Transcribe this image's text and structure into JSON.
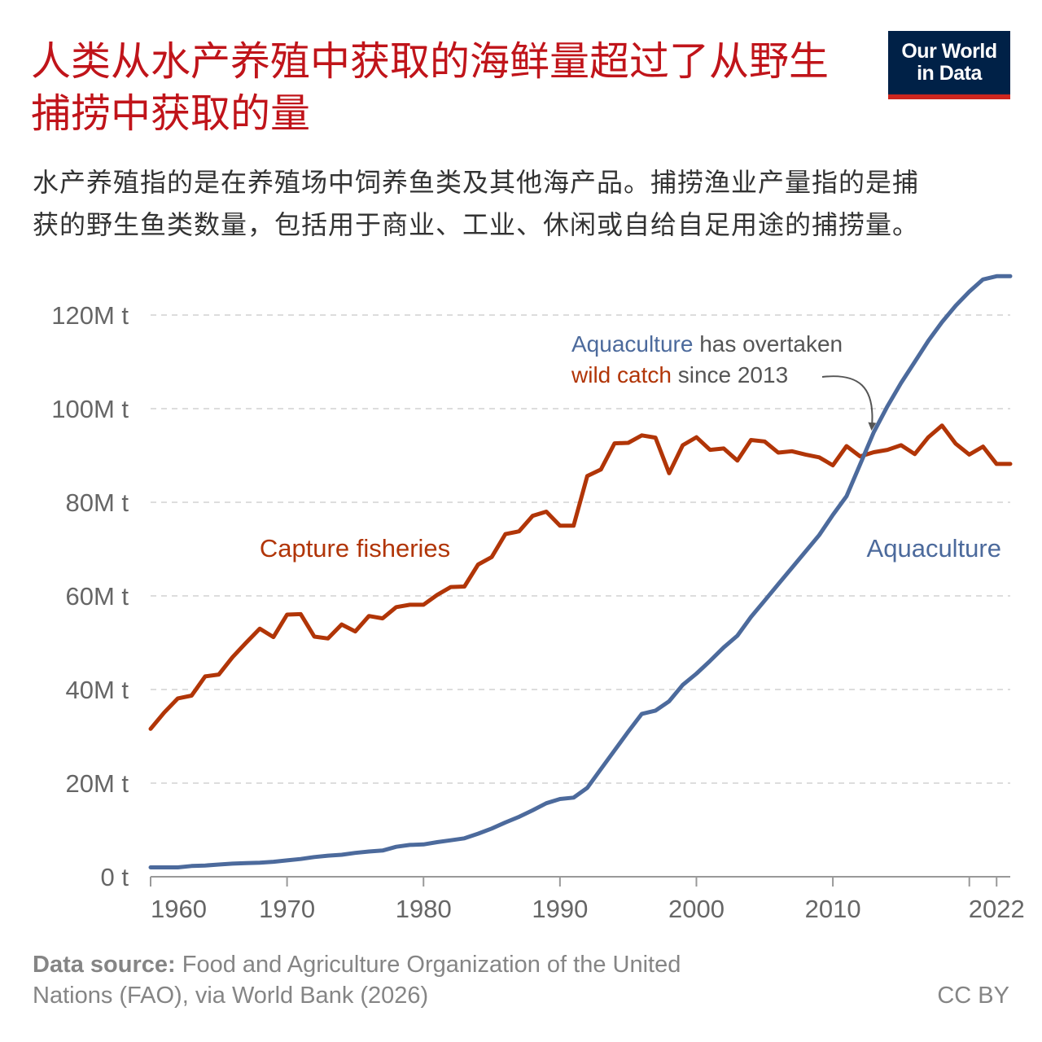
{
  "header": {
    "title": "人类从水产养殖中获取的海鲜量超过了从野生捕捞中获取的量",
    "subtitle": "水产养殖指的是在养殖场中饲养鱼类及其他海产品。捕捞渔业产量指的是捕获的野生鱼类数量，包括用于商业、工业、休闲或自给自足用途的捕捞量。"
  },
  "logo": {
    "line1": "Our World",
    "line2": "in Data",
    "bg": "#002147",
    "accent": "#ce261e"
  },
  "footer": {
    "source_label": "Data source:",
    "source_text": "Food and Agriculture Organization of the United Nations (FAO), via World Bank (2026)",
    "license": "CC BY"
  },
  "annotation": {
    "part1": "Aquaculture",
    "part2": " has overtaken",
    "part3": "wild catch",
    "part4": " since 2013"
  },
  "chart_data": {
    "type": "line",
    "title": "",
    "xlabel": "",
    "ylabel": "",
    "xlim": [
      1960,
      2023
    ],
    "ylim": [
      0,
      120
    ],
    "x_ticks": [
      {
        "value": 1960,
        "label": "1960"
      },
      {
        "value": 1970,
        "label": "1970"
      },
      {
        "value": 1980,
        "label": "1980"
      },
      {
        "value": 1990,
        "label": "1990"
      },
      {
        "value": 2000,
        "label": "2000"
      },
      {
        "value": 2010,
        "label": "2010"
      },
      {
        "value": 2022,
        "label": "2022"
      }
    ],
    "y_ticks": [
      {
        "value": 0,
        "label": "0 t"
      },
      {
        "value": 20,
        "label": "20M t"
      },
      {
        "value": 40,
        "label": "40M t"
      },
      {
        "value": 60,
        "label": "60M t"
      },
      {
        "value": 80,
        "label": "80M t"
      },
      {
        "value": 100,
        "label": "100M t"
      },
      {
        "value": 120,
        "label": "120M t"
      }
    ],
    "grid": true,
    "legend": "inline labels",
    "x": [
      1960,
      1961,
      1962,
      1963,
      1964,
      1965,
      1966,
      1967,
      1968,
      1969,
      1970,
      1971,
      1972,
      1973,
      1974,
      1975,
      1976,
      1977,
      1978,
      1979,
      1980,
      1981,
      1982,
      1983,
      1984,
      1985,
      1986,
      1987,
      1988,
      1989,
      1990,
      1991,
      1992,
      1993,
      1994,
      1995,
      1996,
      1997,
      1998,
      1999,
      2000,
      2001,
      2002,
      2003,
      2004,
      2005,
      2006,
      2007,
      2008,
      2009,
      2010,
      2011,
      2012,
      2013,
      2014,
      2015,
      2016,
      2017,
      2018,
      2019,
      2020,
      2021,
      2022,
      2023
    ],
    "series": [
      {
        "name": "Capture fisheries",
        "color": "#b13507",
        "values": [
          31.6,
          35.1,
          38.1,
          38.7,
          42.8,
          43.2,
          46.9,
          50.0,
          53.0,
          51.2,
          56.0,
          56.1,
          51.3,
          50.9,
          53.9,
          52.4,
          55.7,
          55.2,
          57.6,
          58.1,
          58.1,
          60.2,
          61.9,
          62.0,
          66.7,
          68.3,
          73.2,
          73.8,
          77.1,
          78.0,
          75.0,
          75.0,
          85.6,
          87.0,
          92.6,
          92.7,
          94.3,
          93.8,
          86.2,
          92.2,
          93.9,
          91.2,
          91.5,
          88.9,
          93.3,
          93.0,
          90.6,
          90.9,
          90.2,
          89.6,
          87.9,
          92.0,
          89.8,
          90.7,
          91.2,
          92.2,
          90.3,
          93.9,
          96.4,
          92.5,
          90.2,
          91.9,
          88.2,
          88.2
        ]
      },
      {
        "name": "Aquaculture",
        "color": "#4c6a9c",
        "values": [
          2.0,
          2.0,
          2.0,
          2.3,
          2.4,
          2.6,
          2.8,
          2.9,
          3.0,
          3.2,
          3.5,
          3.8,
          4.2,
          4.5,
          4.7,
          5.1,
          5.4,
          5.6,
          6.4,
          6.8,
          6.9,
          7.4,
          7.8,
          8.2,
          9.2,
          10.3,
          11.6,
          12.8,
          14.2,
          15.7,
          16.6,
          16.9,
          19.0,
          23.0,
          27.0,
          31.0,
          34.8,
          35.5,
          37.5,
          41.0,
          43.4,
          46.1,
          49.0,
          51.5,
          55.5,
          59.0,
          62.5,
          66.0,
          69.5,
          73.0,
          77.3,
          81.3,
          88.1,
          95.0,
          100.5,
          105.5,
          110.0,
          114.5,
          118.5,
          122.0,
          125.0,
          127.6,
          128.3,
          128.3
        ]
      }
    ]
  }
}
